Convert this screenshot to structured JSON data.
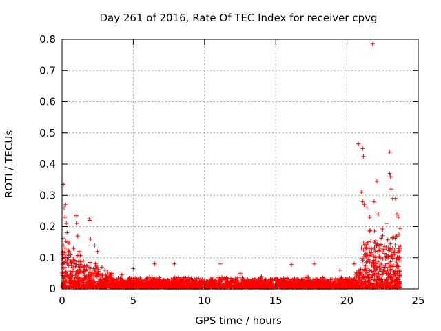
{
  "chart_data": {
    "type": "scatter",
    "title": "Day 261 of 2016, Rate Of TEC Index for receiver cpvg",
    "xlabel": "GPS time / hours",
    "ylabel": "ROTI / TECUs",
    "xlim": [
      0,
      25
    ],
    "ylim": [
      0,
      0.8
    ],
    "xticks": [
      0,
      5,
      10,
      15,
      20,
      25
    ],
    "yticks": [
      0,
      0.1,
      0.2,
      0.3,
      0.4,
      0.5,
      0.6,
      0.7,
      0.8
    ],
    "xtick_labels": [
      "0",
      "5",
      "10",
      "15",
      "20",
      "25"
    ],
    "ytick_labels": [
      "0",
      "0.1",
      "0.2",
      "0.3",
      "0.4",
      "0.5",
      "0.6",
      "0.7",
      "0.8"
    ],
    "grid": true,
    "marker": "+",
    "color": "#ff0000",
    "series": [
      {
        "points": [
          [
            0.1,
            0.335
          ],
          [
            0.15,
            0.26
          ],
          [
            0.2,
            0.23
          ],
          [
            0.25,
            0.27
          ],
          [
            0.3,
            0.21
          ],
          [
            0.35,
            0.18
          ],
          [
            0.4,
            0.15
          ],
          [
            0.5,
            0.12
          ],
          [
            0.6,
            0.11
          ],
          [
            0.8,
            0.13
          ],
          [
            1.0,
            0.235
          ],
          [
            1.05,
            0.21
          ],
          [
            1.1,
            0.17
          ],
          [
            1.2,
            0.12
          ],
          [
            1.5,
            0.09
          ],
          [
            1.9,
            0.225
          ],
          [
            1.95,
            0.22
          ],
          [
            2.0,
            0.16
          ],
          [
            2.3,
            0.14
          ],
          [
            2.5,
            0.12
          ],
          [
            2.8,
            0.07
          ],
          [
            3.0,
            0.06
          ],
          [
            3.5,
            0.05
          ],
          [
            4.2,
            0.045
          ],
          [
            5.0,
            0.065
          ],
          [
            6.5,
            0.08
          ],
          [
            7.9,
            0.08
          ],
          [
            11.1,
            0.08
          ],
          [
            12.5,
            0.05
          ],
          [
            14.0,
            0.04
          ],
          [
            16.1,
            0.078
          ],
          [
            17.7,
            0.08
          ],
          [
            19.5,
            0.06
          ],
          [
            20.5,
            0.08
          ],
          [
            20.8,
            0.465
          ],
          [
            21.1,
            0.45
          ],
          [
            21.15,
            0.425
          ],
          [
            21.0,
            0.31
          ],
          [
            21.1,
            0.28
          ],
          [
            21.2,
            0.27
          ],
          [
            21.4,
            0.26
          ],
          [
            21.6,
            0.23
          ],
          [
            21.8,
            0.785
          ],
          [
            21.9,
            0.28
          ],
          [
            22.1,
            0.345
          ],
          [
            22.2,
            0.24
          ],
          [
            22.5,
            0.19
          ],
          [
            22.8,
            0.21
          ],
          [
            23.0,
            0.438
          ],
          [
            23.0,
            0.37
          ],
          [
            23.05,
            0.36
          ],
          [
            23.1,
            0.32
          ],
          [
            23.2,
            0.29
          ],
          [
            23.4,
            0.29
          ],
          [
            23.5,
            0.24
          ],
          [
            23.6,
            0.23
          ]
        ]
      }
    ]
  }
}
